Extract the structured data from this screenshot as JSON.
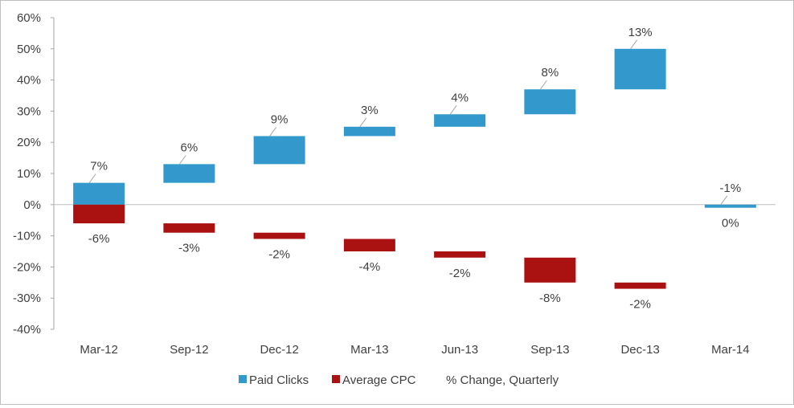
{
  "chart_data": {
    "type": "bar",
    "subtype": "waterfall",
    "categories": [
      "Mar-12",
      "Sep-12",
      "Dec-12",
      "Mar-13",
      "Jun-13",
      "Sep-13",
      "Dec-13",
      "Mar-14"
    ],
    "series": [
      {
        "name": "Paid Clicks",
        "color": "#3399cc",
        "values": [
          7,
          6,
          9,
          3,
          4,
          8,
          13,
          -1
        ],
        "labels": [
          "7%",
          "6%",
          "9%",
          "3%",
          "4%",
          "8%",
          "13%",
          "-1%"
        ]
      },
      {
        "name": "Average CPC",
        "color": "#aa1111",
        "values": [
          -6,
          -3,
          -2,
          -4,
          -2,
          -8,
          -2,
          0
        ],
        "labels": [
          "-6%",
          "-3%",
          "-2%",
          "-4%",
          "-2%",
          "-8%",
          "-2%",
          "0%"
        ]
      }
    ],
    "legend_note": "% Change, Quarterly",
    "legend_position": "bottom",
    "ylim": [
      -40,
      60
    ],
    "yticks": [
      60,
      50,
      40,
      30,
      20,
      10,
      0,
      -10,
      -20,
      -30,
      -40
    ],
    "ytick_labels": [
      "60%",
      "50%",
      "40%",
      "30%",
      "20%",
      "10%",
      "0%",
      "-10%",
      "-20%",
      "-30%",
      "-40%"
    ],
    "grid": false
  }
}
